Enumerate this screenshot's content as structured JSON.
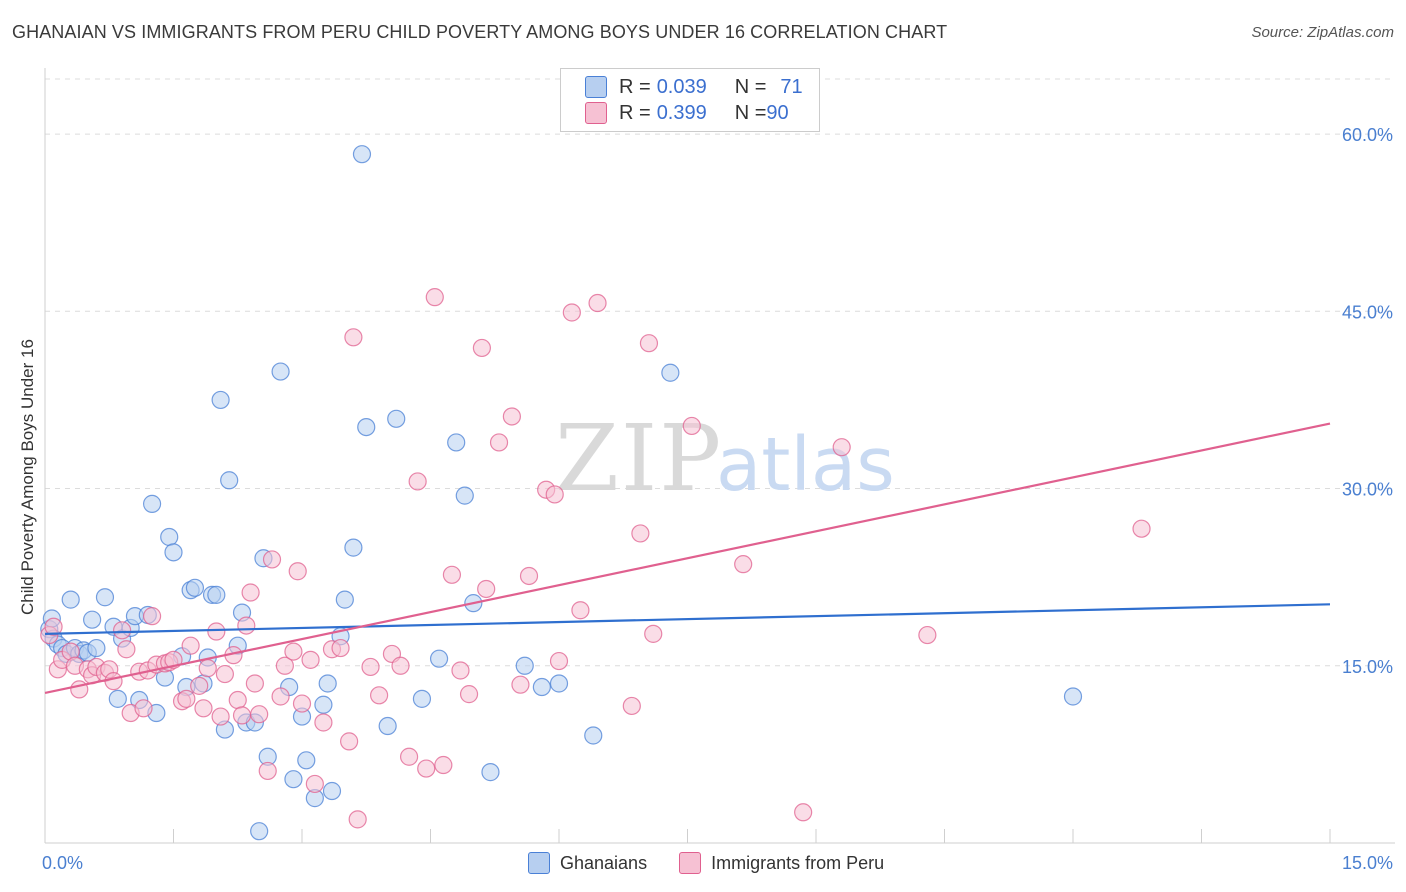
{
  "header": {
    "title": "GHANAIAN VS IMMIGRANTS FROM PERU CHILD POVERTY AMONG BOYS UNDER 16 CORRELATION CHART",
    "source": "Source: ZipAtlas.com"
  },
  "watermark": {
    "zip": "ZIP",
    "atlas": "atlas"
  },
  "legend_top": [
    {
      "r_label": "R = ",
      "r_value": "0.039",
      "n_label": "N = ",
      "n_value": "71"
    },
    {
      "r_label": "R = ",
      "r_value": "0.399",
      "n_label": "N = ",
      "n_value": "90"
    }
  ],
  "legend_bottom": [
    "Ghanaians",
    "Immigrants from Peru"
  ],
  "chart_data": {
    "type": "scatter",
    "title": "GHANAIAN VS IMMIGRANTS FROM PERU CHILD POVERTY AMONG BOYS UNDER 16 CORRELATION CHART",
    "xlabel": "",
    "ylabel": "Child Poverty Among Boys Under 16",
    "xlim": [
      0,
      15
    ],
    "ylim": [
      0,
      65
    ],
    "x_tick_labels": [
      "0.0%",
      "15.0%"
    ],
    "y_ticks": [
      15,
      30,
      45,
      60
    ],
    "y_tick_labels": [
      "15.0%",
      "30.0%",
      "45.0%",
      "60.0%"
    ],
    "colors": {
      "Ghanaians": "#4a80d6",
      "Immigrants from Peru": "#e0608f",
      "Ghanaians_fill": "#b7cff0",
      "Peru_fill": "#f6c1d3"
    },
    "series": [
      {
        "name": "Ghanaians",
        "r": 0.039,
        "n": 71,
        "trend": {
          "x0": 0,
          "y0": 17.7,
          "x1": 15,
          "y1": 20.2
        },
        "points": [
          [
            0.05,
            18.1
          ],
          [
            0.08,
            19.0
          ],
          [
            0.1,
            17.3
          ],
          [
            0.15,
            16.8
          ],
          [
            0.2,
            16.5
          ],
          [
            0.25,
            16.0
          ],
          [
            0.3,
            20.6
          ],
          [
            0.35,
            16.5
          ],
          [
            0.4,
            16.0
          ],
          [
            0.45,
            16.3
          ],
          [
            0.5,
            16.1
          ],
          [
            0.55,
            18.9
          ],
          [
            0.6,
            16.5
          ],
          [
            0.7,
            20.8
          ],
          [
            0.8,
            18.3
          ],
          [
            0.85,
            12.2
          ],
          [
            0.9,
            17.3
          ],
          [
            1.0,
            18.2
          ],
          [
            1.05,
            19.2
          ],
          [
            1.1,
            12.1
          ],
          [
            1.2,
            19.3
          ],
          [
            1.25,
            28.7
          ],
          [
            1.3,
            11.0
          ],
          [
            1.4,
            14.0
          ],
          [
            1.45,
            25.9
          ],
          [
            1.5,
            24.6
          ],
          [
            1.6,
            15.8
          ],
          [
            1.65,
            13.2
          ],
          [
            1.7,
            21.4
          ],
          [
            1.75,
            21.6
          ],
          [
            1.85,
            13.5
          ],
          [
            1.9,
            15.7
          ],
          [
            1.95,
            21.0
          ],
          [
            2.0,
            21.0
          ],
          [
            2.05,
            37.5
          ],
          [
            2.1,
            9.6
          ],
          [
            2.15,
            30.7
          ],
          [
            2.25,
            16.7
          ],
          [
            2.3,
            19.5
          ],
          [
            2.35,
            10.2
          ],
          [
            2.45,
            10.2
          ],
          [
            2.5,
            1.0
          ],
          [
            2.55,
            24.1
          ],
          [
            2.6,
            7.3
          ],
          [
            2.75,
            39.9
          ],
          [
            2.85,
            13.2
          ],
          [
            2.9,
            5.4
          ],
          [
            3.0,
            10.7
          ],
          [
            3.05,
            7.0
          ],
          [
            3.15,
            3.8
          ],
          [
            3.25,
            11.7
          ],
          [
            3.3,
            13.5
          ],
          [
            3.35,
            4.4
          ],
          [
            3.45,
            17.5
          ],
          [
            3.5,
            20.6
          ],
          [
            3.6,
            25.0
          ],
          [
            3.7,
            58.3
          ],
          [
            3.75,
            35.2
          ],
          [
            4.0,
            9.9
          ],
          [
            4.1,
            35.9
          ],
          [
            4.4,
            12.2
          ],
          [
            4.6,
            15.6
          ],
          [
            4.8,
            33.9
          ],
          [
            4.9,
            29.4
          ],
          [
            5.0,
            20.3
          ],
          [
            5.2,
            6.0
          ],
          [
            5.6,
            15.0
          ],
          [
            5.8,
            13.2
          ],
          [
            6.0,
            13.5
          ],
          [
            6.4,
            9.1
          ],
          [
            7.3,
            39.8
          ],
          [
            12.0,
            12.4
          ]
        ]
      },
      {
        "name": "Immigrants from Peru",
        "r": 0.399,
        "n": 90,
        "trend": {
          "x0": 0,
          "y0": 12.7,
          "x1": 15,
          "y1": 35.5
        },
        "points": [
          [
            0.05,
            17.6
          ],
          [
            0.1,
            18.3
          ],
          [
            0.15,
            14.7
          ],
          [
            0.2,
            15.5
          ],
          [
            0.3,
            16.2
          ],
          [
            0.35,
            15.0
          ],
          [
            0.4,
            13.0
          ],
          [
            0.5,
            14.7
          ],
          [
            0.55,
            14.2
          ],
          [
            0.6,
            14.9
          ],
          [
            0.7,
            14.4
          ],
          [
            0.75,
            14.7
          ],
          [
            0.8,
            13.7
          ],
          [
            0.9,
            18.0
          ],
          [
            0.95,
            16.4
          ],
          [
            1.0,
            11.0
          ],
          [
            1.1,
            14.5
          ],
          [
            1.15,
            11.4
          ],
          [
            1.2,
            14.6
          ],
          [
            1.25,
            19.2
          ],
          [
            1.3,
            15.1
          ],
          [
            1.4,
            15.2
          ],
          [
            1.45,
            15.3
          ],
          [
            1.5,
            15.5
          ],
          [
            1.6,
            12.0
          ],
          [
            1.65,
            12.2
          ],
          [
            1.7,
            16.7
          ],
          [
            1.8,
            13.3
          ],
          [
            1.85,
            11.4
          ],
          [
            1.9,
            14.8
          ],
          [
            2.0,
            17.9
          ],
          [
            2.05,
            10.7
          ],
          [
            2.1,
            14.3
          ],
          [
            2.2,
            15.9
          ],
          [
            2.25,
            12.1
          ],
          [
            2.3,
            10.8
          ],
          [
            2.35,
            18.4
          ],
          [
            2.4,
            21.2
          ],
          [
            2.45,
            13.5
          ],
          [
            2.5,
            10.9
          ],
          [
            2.6,
            6.1
          ],
          [
            2.65,
            24.0
          ],
          [
            2.75,
            12.4
          ],
          [
            2.8,
            15.0
          ],
          [
            2.9,
            16.2
          ],
          [
            2.95,
            23.0
          ],
          [
            3.0,
            11.8
          ],
          [
            3.1,
            15.5
          ],
          [
            3.15,
            5.0
          ],
          [
            3.25,
            10.2
          ],
          [
            3.35,
            16.4
          ],
          [
            3.45,
            16.5
          ],
          [
            3.55,
            8.6
          ],
          [
            3.6,
            42.8
          ],
          [
            3.65,
            2.0
          ],
          [
            3.8,
            14.9
          ],
          [
            3.9,
            12.5
          ],
          [
            4.05,
            16.0
          ],
          [
            4.15,
            15.0
          ],
          [
            4.25,
            7.3
          ],
          [
            4.35,
            30.6
          ],
          [
            4.45,
            6.3
          ],
          [
            4.55,
            46.2
          ],
          [
            4.65,
            6.6
          ],
          [
            4.75,
            22.7
          ],
          [
            4.85,
            14.6
          ],
          [
            4.95,
            12.6
          ],
          [
            5.1,
            41.9
          ],
          [
            5.15,
            21.5
          ],
          [
            5.3,
            33.9
          ],
          [
            5.45,
            36.1
          ],
          [
            5.55,
            13.4
          ],
          [
            5.65,
            22.6
          ],
          [
            5.85,
            29.9
          ],
          [
            5.95,
            29.5
          ],
          [
            6.0,
            15.4
          ],
          [
            6.15,
            44.9
          ],
          [
            6.25,
            19.7
          ],
          [
            6.45,
            45.7
          ],
          [
            6.85,
            11.6
          ],
          [
            6.95,
            26.2
          ],
          [
            7.05,
            42.3
          ],
          [
            7.1,
            17.7
          ],
          [
            7.55,
            35.3
          ],
          [
            8.15,
            23.6
          ],
          [
            8.85,
            2.6
          ],
          [
            9.3,
            33.5
          ],
          [
            10.3,
            17.6
          ],
          [
            12.8,
            26.6
          ]
        ]
      }
    ]
  }
}
